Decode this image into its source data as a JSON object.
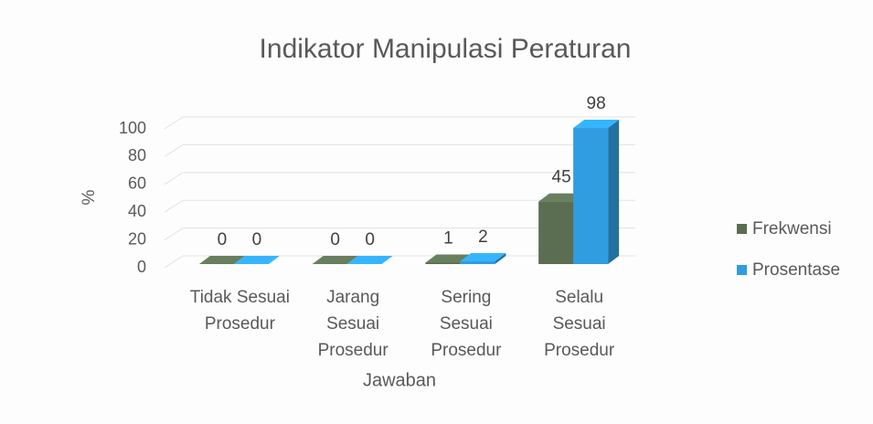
{
  "chart_data": {
    "type": "bar3d",
    "title": "Indikator Manipulasi Peraturan",
    "x_label": "Jawaban",
    "y_label": "%",
    "categories": [
      "Tidak Sesuai Prosedur",
      "Jarang Sesuai Prosedur",
      "Sering Sesuai Prosedur",
      "Selalu Sesuai Prosedur"
    ],
    "series": [
      {
        "name": "Frekwensi",
        "color": "#5b6e52",
        "values": [
          0,
          0,
          1,
          45
        ]
      },
      {
        "name": "Prosentase",
        "color": "#2f9de0",
        "values": [
          0,
          0,
          2,
          98
        ]
      }
    ],
    "ylim": [
      0,
      100
    ],
    "yticks": [
      0,
      20,
      40,
      60,
      80,
      100
    ],
    "grid": true,
    "legend": "right"
  }
}
